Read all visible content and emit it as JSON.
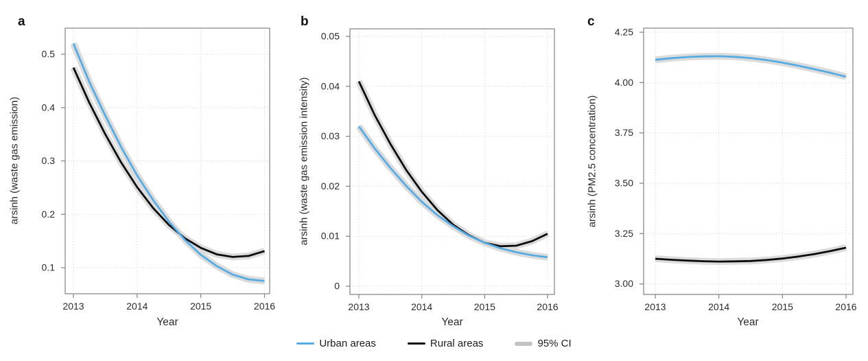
{
  "figure_type": "three-panel line chart figure",
  "colors": {
    "urban_line": "#56ABE2",
    "rural_line": "#0b0b0b",
    "ci_band": "#dcdcdc",
    "legend_ci_swatch": "#c2c2c2",
    "gridline": "#cecece",
    "frame": "#8a8a8a",
    "text": "#2a2a2a"
  },
  "legend": [
    {
      "key": "urban",
      "label": "Urban areas",
      "color": "#56ABE2"
    },
    {
      "key": "rural",
      "label": "Rural areas",
      "color": "#0b0b0b"
    },
    {
      "key": "ci",
      "label": "95% CI",
      "color": "#c2c2c2"
    }
  ],
  "chart_data": [
    {
      "type": "line",
      "panel": "a",
      "title": "",
      "xlabel": "Year",
      "ylabel": "arsinh (waste gas emission)",
      "grid": "dotted",
      "xlim": [
        2012.87,
        2016.08
      ],
      "ylim": [
        0.051,
        0.549
      ],
      "xtick_values": [
        2013,
        2014,
        2015,
        2016
      ],
      "xtick_labels": [
        "2013",
        "2014",
        "2015",
        "2016"
      ],
      "ytick_values": [
        0.5,
        0.4,
        0.3,
        0.2,
        0.1
      ],
      "ytick_labels": [
        "0.5",
        "0.4",
        "0.3",
        "0.2",
        "0.1"
      ],
      "ci_halfwidth_approx": 0.0064,
      "x": [
        2013,
        2013.25,
        2013.5,
        2013.75,
        2014,
        2014.25,
        2014.5,
        2014.75,
        2015,
        2015.25,
        2015.5,
        2015.75,
        2016
      ],
      "series": [
        {
          "key": "rural",
          "name": "Rural areas",
          "color": "#0b0b0b",
          "values": [
            0.475,
            0.409,
            0.35,
            0.297,
            0.251,
            0.212,
            0.18,
            0.155,
            0.137,
            0.125,
            0.12,
            0.122,
            0.131
          ]
        },
        {
          "key": "urban",
          "name": "Urban areas",
          "color": "#56ABE2",
          "values": [
            0.52,
            0.448,
            0.385,
            0.326,
            0.273,
            0.227,
            0.186,
            0.152,
            0.124,
            0.103,
            0.087,
            0.078,
            0.075
          ]
        }
      ]
    },
    {
      "type": "line",
      "panel": "b",
      "title": "",
      "xlabel": "Year",
      "ylabel": "arsinh (waste gas emission intensity)",
      "grid": "dotted",
      "xlim": [
        2012.86,
        2016.11
      ],
      "ylim": [
        -0.0017,
        0.0515
      ],
      "xtick_values": [
        2013,
        2014,
        2015,
        2016
      ],
      "xtick_labels": [
        "2013",
        "2014",
        "2015",
        "2016"
      ],
      "ytick_values": [
        0.05,
        0.04,
        0.03,
        0.02,
        0.01,
        0
      ],
      "ytick_labels": [
        "0.05",
        "0.04",
        "0.03",
        "0.02",
        "0.01",
        "0"
      ],
      "ci_halfwidth_approx": 0.0007,
      "x": [
        2013,
        2013.25,
        2013.5,
        2013.75,
        2014,
        2014.25,
        2014.5,
        2014.75,
        2015,
        2015.25,
        2015.5,
        2015.75,
        2016
      ],
      "series": [
        {
          "key": "rural",
          "name": "Rural areas",
          "color": "#0b0b0b",
          "values": [
            0.041,
            0.0343,
            0.0285,
            0.0233,
            0.0189,
            0.0152,
            0.0123,
            0.0102,
            0.0087,
            0.008,
            0.0081,
            0.009,
            0.0105
          ]
        },
        {
          "key": "urban",
          "name": "Urban areas",
          "color": "#56ABE2",
          "values": [
            0.032,
            0.0276,
            0.0237,
            0.0201,
            0.0169,
            0.0142,
            0.012,
            0.0101,
            0.0087,
            0.0076,
            0.0068,
            0.0062,
            0.0058
          ]
        }
      ]
    },
    {
      "type": "line",
      "panel": "c",
      "title": "",
      "xlabel": "Year",
      "ylabel": "arsinh (PM2.5 concentration)",
      "grid": "dotted",
      "xlim": [
        2012.83,
        2016.1
      ],
      "ylim": [
        2.95,
        4.27
      ],
      "xtick_values": [
        2013,
        2014,
        2015,
        2016
      ],
      "xtick_labels": [
        "2013",
        "2014",
        "2015",
        "2016"
      ],
      "ytick_values": [
        4.25,
        4.0,
        3.75,
        3.5,
        3.25,
        3.0
      ],
      "ytick_labels": [
        "4.25",
        "4.00",
        "3.75",
        "3.50",
        "3.25",
        "3.00"
      ],
      "ci_halfwidth_approx": 0.017,
      "x": [
        2013,
        2013.25,
        2013.5,
        2013.75,
        2014,
        2014.25,
        2014.5,
        2014.75,
        2015,
        2015.25,
        2015.5,
        2015.75,
        2016
      ],
      "series": [
        {
          "key": "rural",
          "name": "Rural areas",
          "color": "#0b0b0b",
          "values": [
            3.125,
            3.12,
            3.116,
            3.113,
            3.111,
            3.112,
            3.114,
            3.119,
            3.126,
            3.136,
            3.148,
            3.163,
            3.18
          ]
        },
        {
          "key": "urban",
          "name": "Urban areas",
          "color": "#56ABE2",
          "values": [
            4.113,
            4.121,
            4.127,
            4.13,
            4.131,
            4.128,
            4.122,
            4.112,
            4.099,
            4.084,
            4.067,
            4.049,
            4.029
          ]
        }
      ]
    }
  ]
}
